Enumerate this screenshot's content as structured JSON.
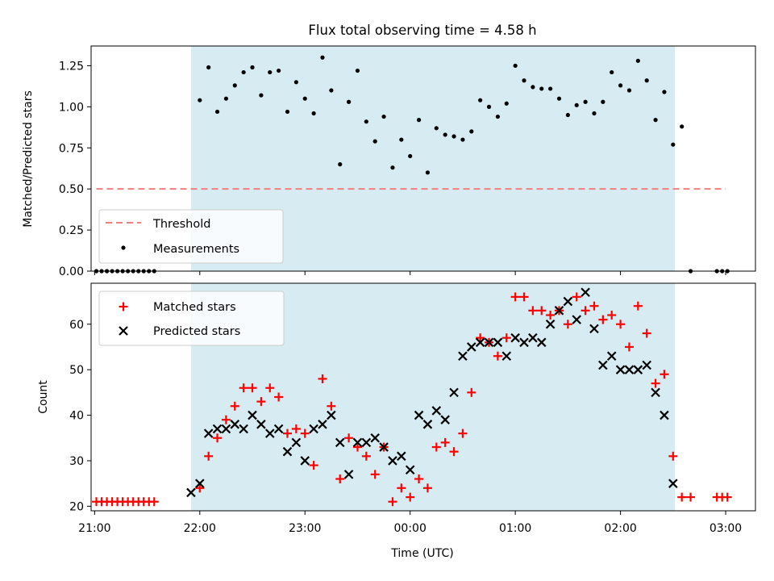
{
  "figure": {
    "title": "Flux total observing time = 4.58 h",
    "xlabel": "Time (UTC)",
    "night_shading_color": "#add8e6"
  },
  "colors": {
    "threshold": "#f08080",
    "measurements": "#000000",
    "matched": "#ff0000",
    "predicted": "#000000"
  },
  "chart_data": [
    {
      "type": "scatter",
      "ylabel": "Matched/Predicted stars",
      "ylim": [
        0.0,
        1.37
      ],
      "yticks": [
        0.0,
        0.25,
        0.5,
        0.75,
        1.0,
        1.25
      ],
      "ytick_labels": [
        "0.00",
        "0.25",
        "0.50",
        "0.75",
        "1.00",
        "1.25"
      ],
      "xlim": [
        "20:58",
        "03:17"
      ],
      "shaded_interval": [
        "21:55",
        "02:31"
      ],
      "legend_location": "lower left",
      "threshold": {
        "name": "Threshold",
        "value": 0.5,
        "x_range": [
          "21:01",
          "03:00"
        ],
        "style": "dashed"
      },
      "series": [
        {
          "name": "Measurements",
          "marker": "dot",
          "points": [
            [
              "21:01",
              0.0
            ],
            [
              "21:04",
              0.0
            ],
            [
              "21:07",
              0.0
            ],
            [
              "21:10",
              0.0
            ],
            [
              "21:13",
              0.0
            ],
            [
              "21:16",
              0.0
            ],
            [
              "21:19",
              0.0
            ],
            [
              "21:22",
              0.0
            ],
            [
              "21:25",
              0.0
            ],
            [
              "21:28",
              0.0
            ],
            [
              "21:31",
              0.0
            ],
            [
              "21:34",
              0.0
            ],
            [
              "22:00",
              1.04
            ],
            [
              "22:05",
              1.24
            ],
            [
              "22:10",
              0.97
            ],
            [
              "22:15",
              1.05
            ],
            [
              "22:20",
              1.13
            ],
            [
              "22:25",
              1.21
            ],
            [
              "22:30",
              1.24
            ],
            [
              "22:35",
              1.07
            ],
            [
              "22:40",
              1.21
            ],
            [
              "22:45",
              1.22
            ],
            [
              "22:50",
              0.97
            ],
            [
              "22:55",
              1.15
            ],
            [
              "23:00",
              1.05
            ],
            [
              "23:05",
              0.96
            ],
            [
              "23:10",
              1.3
            ],
            [
              "23:15",
              1.1
            ],
            [
              "23:20",
              0.65
            ],
            [
              "23:25",
              1.03
            ],
            [
              "23:30",
              1.22
            ],
            [
              "23:35",
              0.91
            ],
            [
              "23:40",
              0.79
            ],
            [
              "23:45",
              0.94
            ],
            [
              "23:50",
              0.63
            ],
            [
              "23:55",
              0.8
            ],
            [
              "00:00",
              0.7
            ],
            [
              "00:05",
              0.92
            ],
            [
              "00:10",
              0.6
            ],
            [
              "00:15",
              0.87
            ],
            [
              "00:20",
              0.83
            ],
            [
              "00:25",
              0.82
            ],
            [
              "00:30",
              0.8
            ],
            [
              "00:35",
              0.85
            ],
            [
              "00:40",
              1.04
            ],
            [
              "00:45",
              1.0
            ],
            [
              "00:50",
              0.94
            ],
            [
              "00:55",
              1.02
            ],
            [
              "01:00",
              1.25
            ],
            [
              "01:05",
              1.16
            ],
            [
              "01:10",
              1.12
            ],
            [
              "01:15",
              1.11
            ],
            [
              "01:20",
              1.11
            ],
            [
              "01:25",
              1.05
            ],
            [
              "01:30",
              0.95
            ],
            [
              "01:35",
              1.01
            ],
            [
              "01:40",
              1.03
            ],
            [
              "01:45",
              0.96
            ],
            [
              "01:50",
              1.03
            ],
            [
              "01:55",
              1.21
            ],
            [
              "02:00",
              1.13
            ],
            [
              "02:05",
              1.1
            ],
            [
              "02:10",
              1.28
            ],
            [
              "02:15",
              1.16
            ],
            [
              "02:20",
              0.92
            ],
            [
              "02:25",
              1.09
            ],
            [
              "02:30",
              0.77
            ],
            [
              "02:35",
              0.88
            ],
            [
              "02:40",
              0.0
            ],
            [
              "02:55",
              0.0
            ],
            [
              "02:58",
              0.0
            ],
            [
              "03:01",
              0.0
            ]
          ]
        }
      ]
    },
    {
      "type": "scatter",
      "ylabel": "Count",
      "xlabel": "Time (UTC)",
      "ylim": [
        19,
        69
      ],
      "yticks": [
        20,
        30,
        40,
        50,
        60
      ],
      "ytick_labels": [
        "20",
        "30",
        "40",
        "50",
        "60"
      ],
      "xlim": [
        "20:58",
        "03:17"
      ],
      "xticks": [
        "21:00",
        "22:00",
        "23:00",
        "00:00",
        "01:00",
        "02:00",
        "03:00"
      ],
      "xtick_labels": [
        "21:00",
        "22:00",
        "23:00",
        "00:00",
        "01:00",
        "02:00",
        "03:00"
      ],
      "shaded_interval": [
        "21:55",
        "02:31"
      ],
      "legend_location": "upper left",
      "series": [
        {
          "name": "Matched stars",
          "marker": "plus",
          "points": [
            [
              "21:01",
              21
            ],
            [
              "21:04",
              21
            ],
            [
              "21:07",
              21
            ],
            [
              "21:10",
              21
            ],
            [
              "21:13",
              21
            ],
            [
              "21:16",
              21
            ],
            [
              "21:19",
              21
            ],
            [
              "21:22",
              21
            ],
            [
              "21:25",
              21
            ],
            [
              "21:28",
              21
            ],
            [
              "21:31",
              21
            ],
            [
              "21:34",
              21
            ],
            [
              "22:00",
              24
            ],
            [
              "22:05",
              31
            ],
            [
              "22:10",
              35
            ],
            [
              "22:15",
              39
            ],
            [
              "22:20",
              42
            ],
            [
              "22:25",
              46
            ],
            [
              "22:30",
              46
            ],
            [
              "22:35",
              43
            ],
            [
              "22:40",
              46
            ],
            [
              "22:45",
              44
            ],
            [
              "22:50",
              36
            ],
            [
              "22:55",
              37
            ],
            [
              "23:00",
              36
            ],
            [
              "23:05",
              29
            ],
            [
              "23:10",
              48
            ],
            [
              "23:15",
              42
            ],
            [
              "23:20",
              26
            ],
            [
              "23:25",
              35
            ],
            [
              "23:30",
              33
            ],
            [
              "23:35",
              31
            ],
            [
              "23:40",
              27
            ],
            [
              "23:45",
              33
            ],
            [
              "23:50",
              21
            ],
            [
              "23:55",
              24
            ],
            [
              "00:00",
              22
            ],
            [
              "00:05",
              26
            ],
            [
              "00:10",
              24
            ],
            [
              "00:15",
              33
            ],
            [
              "00:20",
              34
            ],
            [
              "00:25",
              32
            ],
            [
              "00:30",
              36
            ],
            [
              "00:35",
              45
            ],
            [
              "00:40",
              57
            ],
            [
              "00:45",
              56
            ],
            [
              "00:50",
              53
            ],
            [
              "00:55",
              57
            ],
            [
              "01:00",
              66
            ],
            [
              "01:05",
              66
            ],
            [
              "01:10",
              63
            ],
            [
              "01:15",
              63
            ],
            [
              "01:20",
              62
            ],
            [
              "01:25",
              63
            ],
            [
              "01:30",
              60
            ],
            [
              "01:35",
              66
            ],
            [
              "01:40",
              63
            ],
            [
              "01:45",
              64
            ],
            [
              "01:50",
              61
            ],
            [
              "01:55",
              62
            ],
            [
              "02:00",
              60
            ],
            [
              "02:05",
              55
            ],
            [
              "02:10",
              64
            ],
            [
              "02:15",
              58
            ],
            [
              "02:20",
              47
            ],
            [
              "02:25",
              49
            ],
            [
              "02:30",
              31
            ],
            [
              "02:35",
              22
            ],
            [
              "02:40",
              22
            ],
            [
              "02:55",
              22
            ],
            [
              "02:58",
              22
            ],
            [
              "03:01",
              22
            ]
          ]
        },
        {
          "name": "Predicted stars",
          "marker": "x",
          "points": [
            [
              "21:55",
              23
            ],
            [
              "22:00",
              25
            ],
            [
              "22:05",
              36
            ],
            [
              "22:10",
              37
            ],
            [
              "22:15",
              37
            ],
            [
              "22:20",
              38
            ],
            [
              "22:25",
              37
            ],
            [
              "22:30",
              40
            ],
            [
              "22:35",
              38
            ],
            [
              "22:40",
              36
            ],
            [
              "22:45",
              37
            ],
            [
              "22:50",
              32
            ],
            [
              "22:55",
              34
            ],
            [
              "23:00",
              30
            ],
            [
              "23:05",
              37
            ],
            [
              "23:10",
              38
            ],
            [
              "23:15",
              40
            ],
            [
              "23:20",
              34
            ],
            [
              "23:25",
              27
            ],
            [
              "23:30",
              34
            ],
            [
              "23:35",
              34
            ],
            [
              "23:40",
              35
            ],
            [
              "23:45",
              33
            ],
            [
              "23:50",
              30
            ],
            [
              "23:55",
              31
            ],
            [
              "00:00",
              28
            ],
            [
              "00:05",
              40
            ],
            [
              "00:10",
              38
            ],
            [
              "00:15",
              41
            ],
            [
              "00:20",
              39
            ],
            [
              "00:25",
              45
            ],
            [
              "00:30",
              53
            ],
            [
              "00:35",
              55
            ],
            [
              "00:40",
              56
            ],
            [
              "00:45",
              56
            ],
            [
              "00:50",
              56
            ],
            [
              "00:55",
              53
            ],
            [
              "01:00",
              57
            ],
            [
              "01:05",
              56
            ],
            [
              "01:10",
              57
            ],
            [
              "01:15",
              56
            ],
            [
              "01:20",
              60
            ],
            [
              "01:25",
              63
            ],
            [
              "01:30",
              65
            ],
            [
              "01:35",
              61
            ],
            [
              "01:40",
              67
            ],
            [
              "01:45",
              59
            ],
            [
              "01:50",
              51
            ],
            [
              "01:55",
              53
            ],
            [
              "02:00",
              50
            ],
            [
              "02:05",
              50
            ],
            [
              "02:10",
              50
            ],
            [
              "02:15",
              51
            ],
            [
              "02:20",
              45
            ],
            [
              "02:25",
              40
            ],
            [
              "02:30",
              25
            ]
          ]
        }
      ]
    }
  ]
}
